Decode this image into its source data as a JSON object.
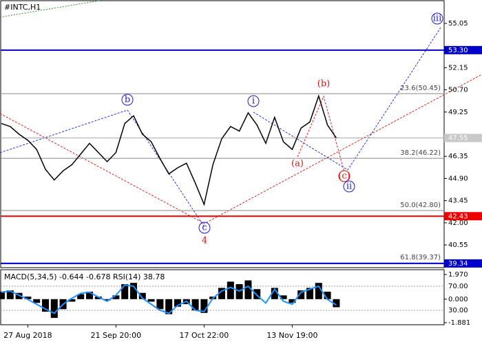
{
  "chart_data": {
    "type": "line",
    "title": "#INTC,H1",
    "color": "#000000",
    "categories": [
      null,
      null,
      null,
      "27 Aug 2018",
      null,
      null,
      null,
      null,
      null,
      null,
      null,
      null,
      null,
      "21 Sep 20:00",
      null,
      null,
      null,
      null,
      null,
      null,
      null,
      null,
      null,
      "17 Oct 22:00",
      null,
      null,
      null,
      null,
      null,
      null,
      null,
      null,
      null,
      "13 Nov 19:00",
      null,
      null,
      null,
      null,
      null,
      null,
      null,
      null,
      null,
      null,
      null,
      null,
      null,
      null,
      null,
      null,
      null
    ],
    "values": [
      48.5,
      48.3,
      47.8,
      47.4,
      46.8,
      45.5,
      44.8,
      45.4,
      45.8,
      46.5,
      47.2,
      46.6,
      46.0,
      46.6,
      48.5,
      49.0,
      47.8,
      47.3,
      46.2,
      45.2,
      45.6,
      45.9,
      44.6,
      43.2,
      45.8,
      47.5,
      48.3,
      48.0,
      49.2,
      48.4,
      47.2,
      48.9,
      47.3,
      46.8,
      48.2,
      48.6,
      50.3,
      48.4,
      47.55,
      null,
      null,
      null,
      null,
      null,
      null,
      null,
      null,
      null,
      null,
      null,
      null
    ],
    "ylim": [
      39.11,
      56.49
    ],
    "yticks": [
      55.05,
      52.15,
      {
        "value": 50.7,
        "label": "50.70"
      },
      49.25,
      46.35,
      {
        "value": 44.9,
        "label": "44.90"
      },
      43.45,
      {
        "value": 42.0,
        "label": "42.00"
      },
      40.55
    ],
    "current_price": {
      "value": 47.55,
      "label": "47.55"
    },
    "levels": [
      {
        "value": 53.3,
        "label": "53.30",
        "color": "#0000cc"
      },
      {
        "value": 42.43,
        "label": "42.43",
        "color": "#ee0000"
      },
      {
        "value": 39.34,
        "label": "39.34",
        "color": "#0000cc"
      }
    ],
    "fib_levels": [
      {
        "value": 50.45,
        "label": "23.6(50.45)"
      },
      {
        "value": 46.22,
        "label": "38.2(46.22)"
      },
      {
        "value": 42.8,
        "label": "50.0(42.80)"
      },
      {
        "value": 39.37,
        "label": "61.8(39.37)"
      }
    ],
    "wave_labels": [
      "b",
      "c",
      "4",
      "i",
      "(b)",
      "(a)",
      "(c)",
      "ii",
      "iii"
    ],
    "indicator": {
      "label": "MACD(5,34,5) -0.644 -0.678 RSI(14) 38.78",
      "ylim": [
        -1.881,
        1.97
      ],
      "yticks": [
        {
          "value": 1.97,
          "label": "1.970"
        },
        {
          "value": 0,
          "label": "0.000"
        },
        {
          "value": -1.881,
          "label": "-1.881"
        }
      ],
      "histogram": [
        0.6,
        0.7,
        0.5,
        0.2,
        -0.3,
        -1.0,
        -1.5,
        -0.8,
        -0.2,
        0.4,
        0.6,
        0.2,
        -0.1,
        0.3,
        1.2,
        1.3,
        0.5,
        -0.2,
        -0.8,
        -1.2,
        -0.6,
        -0.4,
        -0.9,
        -1.1,
        0.2,
        0.9,
        1.4,
        1.2,
        1.5,
        0.8,
        0.0,
        0.9,
        0.3,
        -0.3,
        0.7,
        0.9,
        1.3,
        0.6,
        -0.644
      ],
      "rsi_ylim": [
        9.43,
        89.43
      ],
      "rsi_yticks": [
        {
          "value": 70,
          "label": "70.00"
        },
        {
          "value": 30,
          "label": "30.00"
        }
      ],
      "rsi": [
        60,
        62,
        55,
        48,
        40,
        32,
        25,
        40,
        50,
        58,
        60,
        52,
        45,
        55,
        72,
        70,
        50,
        40,
        30,
        25,
        38,
        45,
        30,
        28,
        50,
        62,
        68,
        62,
        70,
        55,
        42,
        65,
        45,
        40,
        60,
        65,
        70,
        48,
        38.78
      ]
    }
  }
}
